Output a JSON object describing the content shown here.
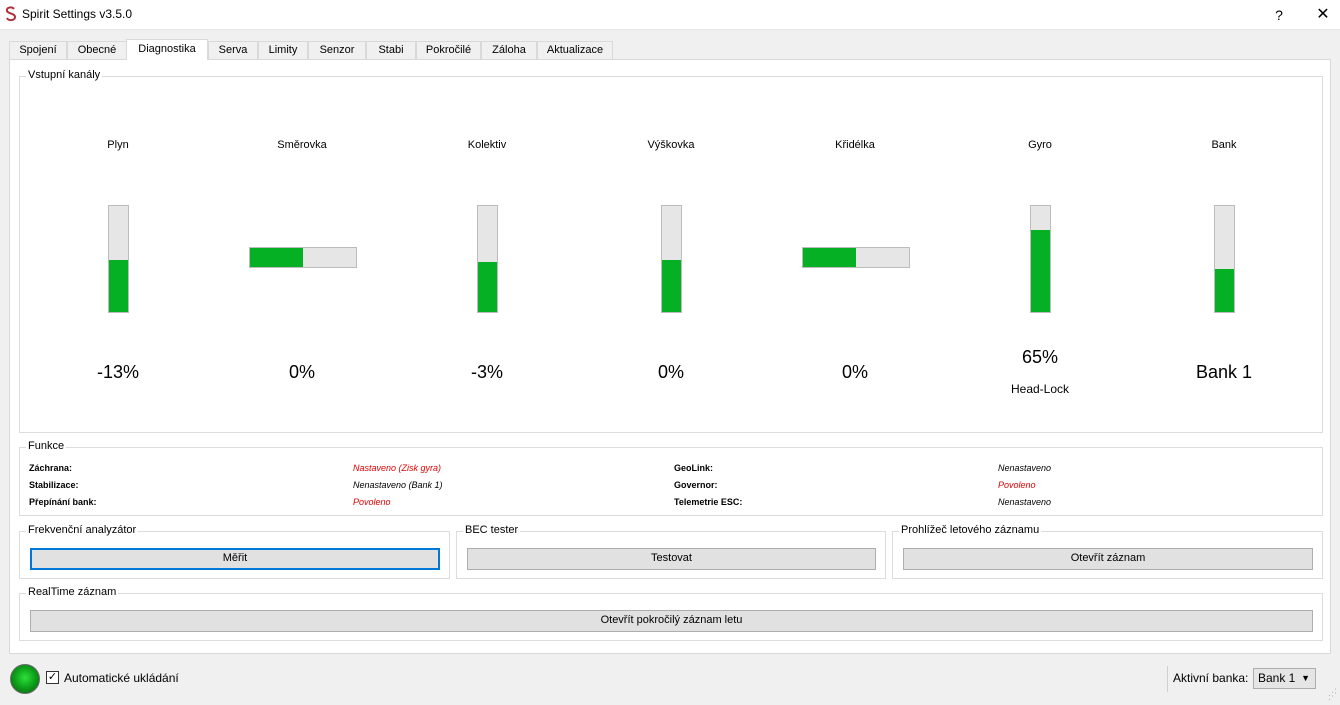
{
  "window": {
    "title": "Spirit Settings v3.5.0",
    "help": "?",
    "close": "✕"
  },
  "tabs": [
    {
      "label": "Spojení"
    },
    {
      "label": "Obecné"
    },
    {
      "label": "Diagnostika"
    },
    {
      "label": "Serva"
    },
    {
      "label": "Limity"
    },
    {
      "label": "Senzor"
    },
    {
      "label": "Stabi"
    },
    {
      "label": "Pokročilé"
    },
    {
      "label": "Záloha"
    },
    {
      "label": "Aktualizace"
    }
  ],
  "active_tab": "Diagnostika",
  "inputs_group": {
    "title": "Vstupní kanály",
    "channels": [
      {
        "label": "Plyn",
        "value": "-13%",
        "level": 0.49,
        "orientation": "vertical"
      },
      {
        "label": "Směrovka",
        "value": "0%",
        "level": 0.5,
        "orientation": "horizontal"
      },
      {
        "label": "Kolektiv",
        "value": "-3%",
        "level": 0.47,
        "orientation": "vertical"
      },
      {
        "label": "Výškovka",
        "value": "0%",
        "level": 0.49,
        "orientation": "vertical"
      },
      {
        "label": "Křidélka",
        "value": "0%",
        "level": 0.5,
        "orientation": "horizontal"
      },
      {
        "label": "Gyro",
        "value": "65%",
        "sub": "Head-Lock",
        "level": 0.77,
        "orientation": "vertical"
      },
      {
        "label": "Bank",
        "value": "Bank 1",
        "level": 0.41,
        "orientation": "vertical"
      }
    ],
    "fill_color": "#06b025"
  },
  "funkce": {
    "title": "Funkce",
    "rows": [
      {
        "label": "Záchrana:",
        "value": "Nastaveno (Zisk gyra)",
        "red": true
      },
      {
        "label": "Stabilizace:",
        "value": "Nenastaveno (Bank 1)",
        "red": false
      },
      {
        "label": "Přepínání bank:",
        "value": "Povoleno",
        "red": true
      },
      {
        "label": "GeoLink:",
        "value": "Nenastaveno",
        "red": false
      },
      {
        "label": "Governor:",
        "value": "Povoleno",
        "red": true
      },
      {
        "label": "Telemetrie ESC:",
        "value": "Nenastaveno",
        "red": false
      }
    ]
  },
  "freq": {
    "title": "Frekvenční analyzátor",
    "button": "Měřit"
  },
  "bec": {
    "title": "BEC tester",
    "button": "Testovat"
  },
  "flightlog": {
    "title": "Prohlížeč letového záznamu",
    "button": "Otevřít záznam"
  },
  "realtime": {
    "title": "RealTime záznam",
    "button": "Otevřít pokročilý záznam letu"
  },
  "footer": {
    "autosave_label": "Automatické ukládání",
    "autosave_checked": true,
    "checkmark": "✓",
    "active_bank_label": "Aktivní banka:",
    "active_bank_value": "Bank 1",
    "combo_arrow": "▼",
    "status_color": "#0fa51c"
  }
}
